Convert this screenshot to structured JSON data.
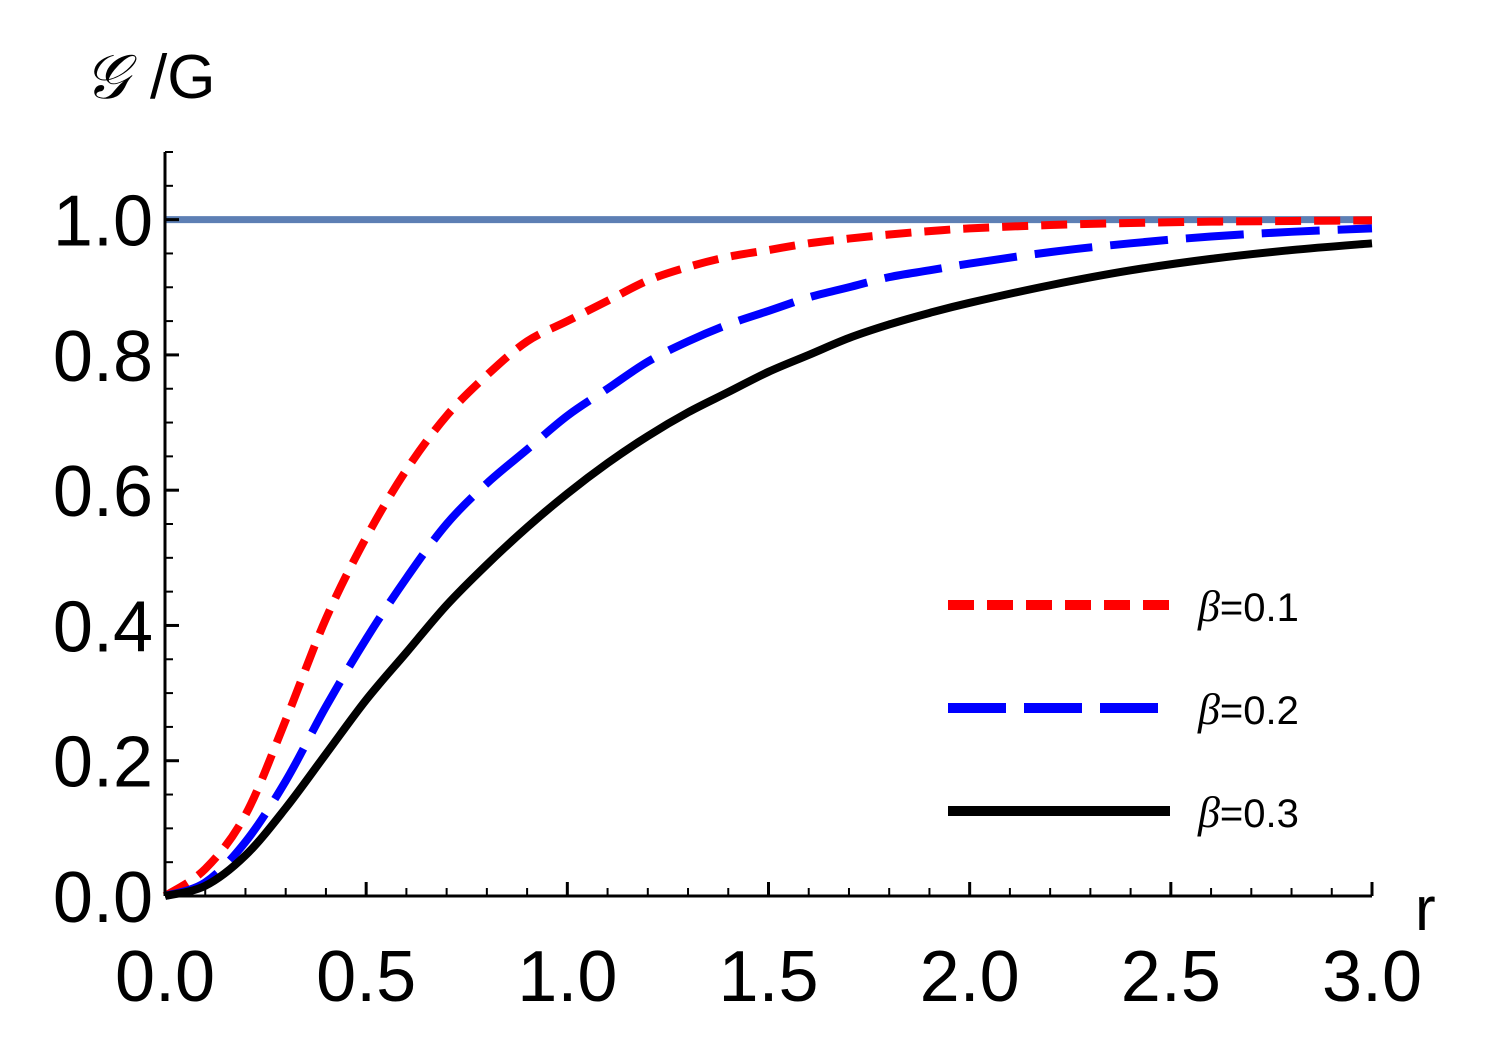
{
  "chart_data": {
    "type": "line",
    "title": "",
    "xlabel": "r",
    "ylabel_script": "𝒢",
    "ylabel_rest": "/G",
    "xlim": [
      0,
      3.0
    ],
    "ylim": [
      0,
      1.1
    ],
    "x_ticks": [
      "0.0",
      "0.5",
      "1.0",
      "1.5",
      "2.0",
      "2.5",
      "3.0"
    ],
    "y_ticks": [
      "0.0",
      "0.2",
      "0.4",
      "0.6",
      "0.8",
      "1.0"
    ],
    "legend_position": "right",
    "reference_line": {
      "y": 1.0,
      "color": "#5d7fb4"
    },
    "x": [
      0,
      0.1,
      0.2,
      0.3,
      0.4,
      0.5,
      0.6,
      0.7,
      0.8,
      0.9,
      1.0,
      1.1,
      1.2,
      1.3,
      1.4,
      1.5,
      1.6,
      1.7,
      1.8,
      1.9,
      2.0,
      2.2,
      2.4,
      2.6,
      2.8,
      3.0
    ],
    "series": [
      {
        "name": "β=0.1",
        "beta": "β",
        "label_rest": "=0.1",
        "color": "#ff0000",
        "style": "short-dash",
        "values": [
          0,
          0.04,
          0.12,
          0.26,
          0.41,
          0.53,
          0.63,
          0.71,
          0.77,
          0.82,
          0.85,
          0.88,
          0.91,
          0.93,
          0.945,
          0.955,
          0.965,
          0.972,
          0.978,
          0.983,
          0.987,
          0.992,
          0.995,
          0.997,
          0.998,
          0.999
        ]
      },
      {
        "name": "β=0.2",
        "beta": "β",
        "label_rest": "=0.2",
        "color": "#0000ff",
        "style": "long-dash",
        "values": [
          0,
          0.02,
          0.08,
          0.17,
          0.28,
          0.38,
          0.47,
          0.55,
          0.61,
          0.66,
          0.71,
          0.75,
          0.79,
          0.82,
          0.845,
          0.865,
          0.885,
          0.9,
          0.915,
          0.925,
          0.935,
          0.952,
          0.965,
          0.975,
          0.982,
          0.987
        ]
      },
      {
        "name": "β=0.3",
        "beta": "β",
        "label_rest": "=0.3",
        "color": "#000000",
        "style": "solid",
        "values": [
          0,
          0.015,
          0.06,
          0.13,
          0.21,
          0.29,
          0.36,
          0.43,
          0.49,
          0.545,
          0.595,
          0.64,
          0.68,
          0.715,
          0.745,
          0.775,
          0.8,
          0.825,
          0.845,
          0.862,
          0.877,
          0.903,
          0.925,
          0.942,
          0.955,
          0.965
        ]
      }
    ]
  }
}
